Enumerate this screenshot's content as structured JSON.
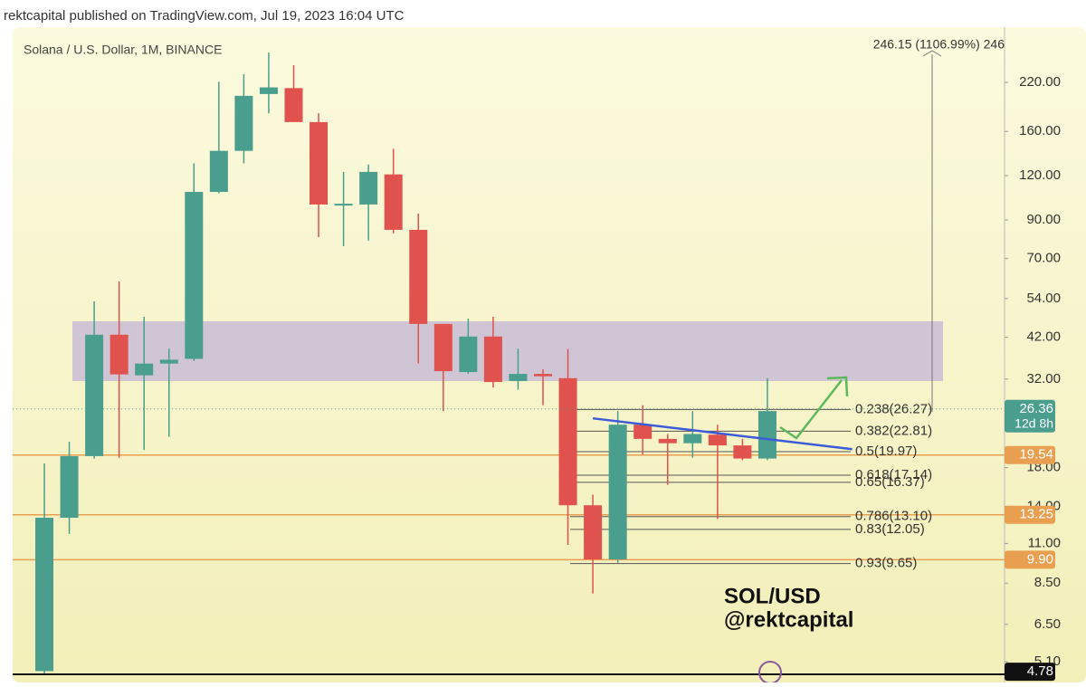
{
  "header": "rektcapital published on TradingView.com, Jul 19, 2023 16:04 UTC",
  "chart_data": {
    "type": "candlestick",
    "title": "Solana / U.S. Dollar, 1M, BINANCE",
    "log_scale": true,
    "grid": false,
    "up_color": "#4a9e8e",
    "down_color": "#e0524d",
    "ylim": [
      4.7,
      315
    ],
    "yticks": [
      {
        "value": 220,
        "label": "220.00"
      },
      {
        "value": 160,
        "label": "160.00"
      },
      {
        "value": 120,
        "label": "120.00"
      },
      {
        "value": 90,
        "label": "90.00"
      },
      {
        "value": 70,
        "label": "70.00"
      },
      {
        "value": 54,
        "label": "54.00"
      },
      {
        "value": 42,
        "label": "42.00"
      },
      {
        "value": 32,
        "label": "32.00"
      },
      {
        "value": 18,
        "label": "18.00"
      },
      {
        "value": 14,
        "label": "14.00"
      },
      {
        "value": 11,
        "label": "11.00"
      },
      {
        "value": 8.5,
        "label": "8.50"
      },
      {
        "value": 6.5,
        "label": "6.50"
      },
      {
        "value": 5.1,
        "label": "5.10"
      }
    ],
    "candles": [
      {
        "open": 4.8,
        "high": 18.5,
        "low": 4.7,
        "close": 13.0
      },
      {
        "open": 13.0,
        "high": 21.3,
        "low": 11.7,
        "close": 19.4
      },
      {
        "open": 19.4,
        "high": 53,
        "low": 19.1,
        "close": 42.7
      },
      {
        "open": 42.7,
        "high": 60.4,
        "low": 19.2,
        "close": 33.0
      },
      {
        "open": 32.8,
        "high": 48,
        "low": 20.2,
        "close": 35.4
      },
      {
        "open": 35.4,
        "high": 39,
        "low": 22.0,
        "close": 36.3
      },
      {
        "open": 36.5,
        "high": 130,
        "low": 36.0,
        "close": 108
      },
      {
        "open": 108,
        "high": 221,
        "low": 107,
        "close": 141
      },
      {
        "open": 141,
        "high": 232,
        "low": 130,
        "close": 201.6
      },
      {
        "open": 204,
        "high": 267,
        "low": 180,
        "close": 213
      },
      {
        "open": 212,
        "high": 246,
        "low": 170,
        "close": 170
      },
      {
        "open": 170,
        "high": 180,
        "low": 80.5,
        "close": 99.5
      },
      {
        "open": 99.5,
        "high": 123,
        "low": 75.9,
        "close": 100
      },
      {
        "open": 99.5,
        "high": 129,
        "low": 78.7,
        "close": 123
      },
      {
        "open": 121,
        "high": 143,
        "low": 82.5,
        "close": 84.4
      },
      {
        "open": 84.4,
        "high": 93.8,
        "low": 35.4,
        "close": 45.8
      },
      {
        "open": 45.8,
        "high": 45.8,
        "low": 26.0,
        "close": 33.7
      },
      {
        "open": 33.5,
        "high": 47.4,
        "low": 33.1,
        "close": 42.2
      },
      {
        "open": 42.2,
        "high": 48,
        "low": 30.3,
        "close": 31.4
      },
      {
        "open": 31.6,
        "high": 39,
        "low": 29.9,
        "close": 33.1
      },
      {
        "open": 33.1,
        "high": 34.1,
        "low": 27.0,
        "close": 32.6
      },
      {
        "open": 32.2,
        "high": 38.9,
        "low": 10.9,
        "close": 14.1
      },
      {
        "open": 14.1,
        "high": 15.1,
        "low": 7.95,
        "close": 9.92
      },
      {
        "open": 9.92,
        "high": 26.0,
        "low": 9.7,
        "close": 23.8
      },
      {
        "open": 23.8,
        "high": 27.0,
        "low": 19.6,
        "close": 21.7
      },
      {
        "open": 21.7,
        "high": 22.4,
        "low": 16.1,
        "close": 21.1
      },
      {
        "open": 21.1,
        "high": 26.0,
        "low": 19.2,
        "close": 22.4
      },
      {
        "open": 22.3,
        "high": 23.8,
        "low": 12.9,
        "close": 20.8
      },
      {
        "open": 20.8,
        "high": 21.7,
        "low": 18.9,
        "close": 19.1
      },
      {
        "open": 19.1,
        "high": 32.2,
        "low": 18.9,
        "close": 26.0
      }
    ],
    "zone": {
      "low": 31.6,
      "high": 46.6,
      "color": "#c8bcd6"
    },
    "trendline": {
      "start": {
        "index": 22,
        "value": 24.8
      },
      "end": {
        "index": 32.4,
        "value": 20.3
      },
      "color": "#3b5bd9"
    },
    "fib_levels": [
      {
        "label": "0.238(26.27)",
        "value": 26.27
      },
      {
        "label": "0.382(22.81)",
        "value": 22.81
      },
      {
        "label": "0.5(19.97)",
        "value": 19.97
      },
      {
        "label": "0.618(17.14)",
        "value": 17.14
      },
      {
        "label": "0.65(16.37)",
        "value": 16.37
      },
      {
        "label": "0.786(13.10)",
        "value": 13.1
      },
      {
        "label": "0.83(12.05)",
        "value": 12.05
      },
      {
        "label": "0.93(9.65)",
        "value": 9.65
      }
    ],
    "levels": [
      {
        "value": 19.54,
        "color": "#e8a050"
      },
      {
        "value": 13.25,
        "color": "#e8a050"
      },
      {
        "value": 9.9,
        "color": "#e8a050"
      }
    ],
    "price_tags": [
      {
        "value": 26.36,
        "label": "26.36",
        "sub": "12d 8h",
        "color": "#4a9e8e"
      },
      {
        "value": 19.54,
        "label": "19.54",
        "color": "#e8a050"
      },
      {
        "value": 13.25,
        "label": "13.25",
        "color": "#e8a050"
      },
      {
        "value": 9.9,
        "label": "9.90",
        "color": "#e8a050"
      },
      {
        "value": 4.78,
        "label": "4.78",
        "color": "#111111"
      }
    ],
    "measure_label": "246.15 (1106.99%) 246",
    "annotations": [
      "SOL/USD",
      "@rektcapital"
    ]
  }
}
